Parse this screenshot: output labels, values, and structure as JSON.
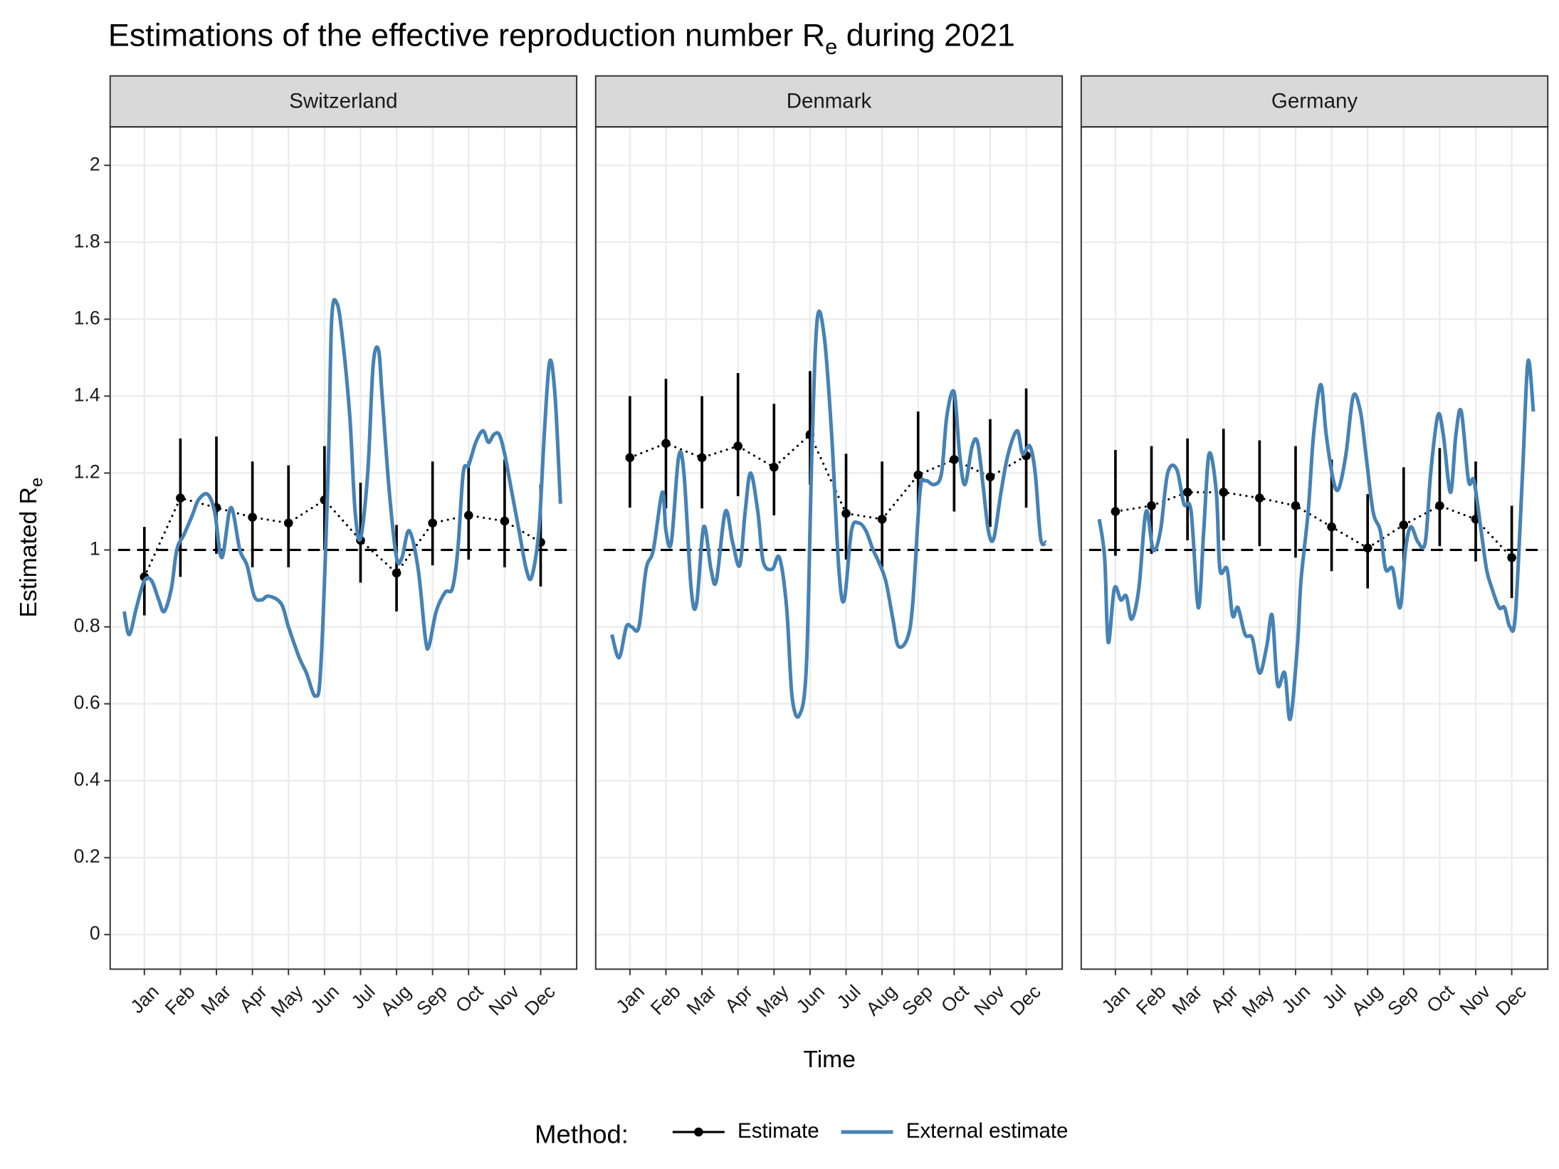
{
  "title_parts": [
    "Estimations of the effective reproduction number R",
    "e",
    " during 2021"
  ],
  "x_label": "Time",
  "y_label_parts": [
    "Estimated R",
    "e"
  ],
  "legend_title": "Method:",
  "chart_data": [
    {
      "type": "line",
      "title": "Switzerland",
      "xlim": [
        0.05,
        13
      ],
      "ylim": [
        -0.09,
        2.1
      ],
      "xticks": [
        {
          "value": 1,
          "label": "Jan"
        },
        {
          "value": 2,
          "label": "Feb"
        },
        {
          "value": 3,
          "label": "Mar"
        },
        {
          "value": 4,
          "label": "Apr"
        },
        {
          "value": 5,
          "label": "May"
        },
        {
          "value": 6,
          "label": "Jun"
        },
        {
          "value": 7,
          "label": "Jul"
        },
        {
          "value": 8,
          "label": "Aug"
        },
        {
          "value": 9,
          "label": "Sep"
        },
        {
          "value": 10,
          "label": "Oct"
        },
        {
          "value": 11,
          "label": "Nov"
        },
        {
          "value": 12,
          "label": "Dec"
        }
      ],
      "yticks": [
        0,
        0.2,
        0.4,
        0.6,
        0.8,
        1,
        1.2,
        1.4,
        1.6,
        1.8,
        2
      ],
      "hline": 1,
      "grid": true,
      "series": [
        {
          "name": "Estimate",
          "color": "#000000",
          "values": [
            0.93,
            1.135,
            1.11,
            1.085,
            1.07,
            1.13,
            1.025,
            0.94,
            1.07,
            1.09,
            1.075,
            1.02
          ],
          "lower": [
            0.83,
            0.93,
            0.99,
            0.955,
            0.955,
            1.0,
            0.915,
            0.84,
            0.96,
            0.975,
            0.955,
            0.905
          ],
          "upper": [
            1.06,
            1.29,
            1.295,
            1.23,
            1.22,
            1.27,
            1.175,
            1.065,
            1.23,
            1.23,
            1.235,
            1.17
          ]
        },
        {
          "name": "External estimate",
          "color": "#4682b4",
          "x": [
            0.44,
            0.58,
            0.78,
            1.0,
            1.2,
            1.4,
            1.55,
            1.75,
            1.9,
            2.1,
            2.33,
            2.5,
            2.75,
            2.95,
            3.15,
            3.4,
            3.65,
            3.85,
            4.05,
            4.25,
            4.45,
            4.8,
            5.0,
            5.3,
            5.5,
            5.75,
            5.9,
            6.1,
            6.2,
            6.35,
            6.5,
            6.7,
            6.85,
            7.0,
            7.2,
            7.35,
            7.5,
            7.6,
            7.8,
            8.0,
            8.15,
            8.35,
            8.6,
            8.8,
            8.9,
            9.1,
            9.35,
            9.55,
            9.7,
            9.85,
            10.0,
            10.2,
            10.4,
            10.55,
            10.7,
            10.85,
            11.0,
            11.2,
            11.4,
            11.6,
            11.75,
            11.95,
            12.1,
            12.25,
            12.4,
            12.55
          ],
          "values": [
            0.84,
            0.78,
            0.85,
            0.92,
            0.92,
            0.87,
            0.84,
            0.9,
            1.0,
            1.04,
            1.09,
            1.13,
            1.145,
            1.1,
            0.98,
            1.11,
            1.0,
            0.96,
            0.88,
            0.87,
            0.88,
            0.86,
            0.8,
            0.72,
            0.68,
            0.62,
            0.7,
            1.2,
            1.6,
            1.64,
            1.55,
            1.35,
            1.1,
            1.03,
            1.2,
            1.48,
            1.52,
            1.4,
            1.15,
            0.98,
            0.98,
            1.05,
            0.95,
            0.77,
            0.75,
            0.84,
            0.89,
            0.9,
            1.0,
            1.2,
            1.22,
            1.28,
            1.31,
            1.28,
            1.3,
            1.3,
            1.25,
            1.15,
            1.05,
            0.95,
            0.93,
            1.05,
            1.3,
            1.49,
            1.4,
            1.12
          ]
        }
      ]
    },
    {
      "type": "line",
      "title": "Denmark",
      "xlim": [
        0.05,
        13
      ],
      "ylim": [
        -0.09,
        2.1
      ],
      "xticks": [
        {
          "value": 1,
          "label": "Jan"
        },
        {
          "value": 2,
          "label": "Feb"
        },
        {
          "value": 3,
          "label": "Mar"
        },
        {
          "value": 4,
          "label": "Apr"
        },
        {
          "value": 5,
          "label": "May"
        },
        {
          "value": 6,
          "label": "Jun"
        },
        {
          "value": 7,
          "label": "Jul"
        },
        {
          "value": 8,
          "label": "Aug"
        },
        {
          "value": 9,
          "label": "Sep"
        },
        {
          "value": 10,
          "label": "Oct"
        },
        {
          "value": 11,
          "label": "Nov"
        },
        {
          "value": 12,
          "label": "Dec"
        }
      ],
      "yticks": [
        0,
        0.2,
        0.4,
        0.6,
        0.8,
        1,
        1.2,
        1.4,
        1.6,
        1.8,
        2
      ],
      "hline": 1,
      "grid": true,
      "series": [
        {
          "color": "#000000",
          "values": [
            1.24,
            1.277,
            1.24,
            1.27,
            1.215,
            1.3,
            1.095,
            1.08,
            1.195,
            1.235,
            1.19,
            1.245
          ],
          "lower": [
            1.11,
            1.108,
            1.108,
            1.14,
            1.09,
            1.17,
            0.975,
            0.955,
            1.065,
            1.1,
            1.06,
            1.11
          ],
          "upper": [
            1.4,
            1.445,
            1.4,
            1.46,
            1.38,
            1.465,
            1.25,
            1.23,
            1.36,
            1.41,
            1.34,
            1.42
          ]
        },
        {
          "color": "#4682b4",
          "x": [
            0.5,
            0.7,
            0.9,
            1.05,
            1.25,
            1.45,
            1.65,
            1.9,
            2.0,
            2.15,
            2.35,
            2.5,
            2.7,
            2.85,
            3.05,
            3.25,
            3.4,
            3.65,
            3.85,
            4.05,
            4.2,
            4.35,
            4.55,
            4.7,
            4.95,
            5.15,
            5.35,
            5.5,
            5.7,
            5.9,
            6.05,
            6.2,
            6.4,
            6.6,
            6.8,
            6.95,
            7.15,
            7.35,
            7.55,
            7.75,
            7.9,
            8.1,
            8.3,
            8.45,
            8.7,
            8.85,
            9.05,
            9.2,
            9.45,
            9.65,
            9.8,
            10.0,
            10.15,
            10.3,
            10.5,
            10.65,
            10.8,
            10.95,
            11.1,
            11.3,
            11.5,
            11.75,
            11.9,
            12.1,
            12.25,
            12.4,
            12.55
          ],
          "values": [
            0.78,
            0.72,
            0.8,
            0.8,
            0.8,
            0.95,
            1.0,
            1.15,
            1.05,
            1.02,
            1.24,
            1.2,
            0.9,
            0.86,
            1.06,
            0.95,
            0.92,
            1.1,
            1.02,
            0.96,
            1.1,
            1.2,
            1.1,
            0.97,
            0.95,
            0.98,
            0.85,
            0.62,
            0.57,
            0.7,
            1.25,
            1.6,
            1.55,
            1.3,
            0.95,
            0.87,
            1.05,
            1.07,
            1.05,
            1.0,
            0.97,
            0.92,
            0.82,
            0.75,
            0.77,
            0.86,
            1.15,
            1.18,
            1.17,
            1.2,
            1.35,
            1.41,
            1.25,
            1.17,
            1.27,
            1.28,
            1.17,
            1.05,
            1.03,
            1.15,
            1.25,
            1.31,
            1.25,
            1.27,
            1.2,
            1.03,
            1.02
          ]
        }
      ]
    },
    {
      "type": "line",
      "title": "Germany",
      "xlim": [
        0.05,
        13
      ],
      "ylim": [
        -0.09,
        2.1
      ],
      "xticks": [
        {
          "value": 1,
          "label": "Jan"
        },
        {
          "value": 2,
          "label": "Feb"
        },
        {
          "value": 3,
          "label": "Mar"
        },
        {
          "value": 4,
          "label": "Apr"
        },
        {
          "value": 5,
          "label": "May"
        },
        {
          "value": 6,
          "label": "Jun"
        },
        {
          "value": 7,
          "label": "Jul"
        },
        {
          "value": 8,
          "label": "Aug"
        },
        {
          "value": 9,
          "label": "Sep"
        },
        {
          "value": 10,
          "label": "Oct"
        },
        {
          "value": 11,
          "label": "Nov"
        },
        {
          "value": 12,
          "label": "Dec"
        }
      ],
      "yticks": [
        0,
        0.2,
        0.4,
        0.6,
        0.8,
        1,
        1.2,
        1.4,
        1.6,
        1.8,
        2
      ],
      "hline": 1,
      "grid": true,
      "series": [
        {
          "color": "#000000",
          "values": [
            1.1,
            1.115,
            1.15,
            1.15,
            1.135,
            1.115,
            1.06,
            1.005,
            1.065,
            1.115,
            1.08,
            0.98
          ],
          "lower": [
            0.985,
            0.99,
            1.025,
            1.025,
            1.01,
            0.98,
            0.945,
            0.9,
            0.955,
            1.01,
            0.97,
            0.875
          ],
          "upper": [
            1.26,
            1.27,
            1.29,
            1.315,
            1.285,
            1.27,
            1.235,
            1.145,
            1.215,
            1.265,
            1.23,
            1.115
          ]
        },
        {
          "color": "#4682b4",
          "x": [
            0.55,
            0.7,
            0.8,
            0.97,
            1.15,
            1.3,
            1.45,
            1.65,
            1.85,
            2.05,
            2.25,
            2.45,
            2.7,
            2.9,
            3.1,
            3.3,
            3.45,
            3.6,
            3.8,
            3.9,
            4.1,
            4.25,
            4.4,
            4.6,
            4.8,
            5.0,
            5.2,
            5.35,
            5.5,
            5.7,
            5.85,
            6.05,
            6.15,
            6.35,
            6.5,
            6.7,
            6.85,
            7.05,
            7.2,
            7.4,
            7.6,
            7.8,
            7.95,
            8.15,
            8.35,
            8.5,
            8.7,
            8.9,
            9.05,
            9.2,
            9.4,
            9.6,
            9.75,
            9.95,
            10.1,
            10.3,
            10.45,
            10.6,
            10.8,
            10.95,
            11.15,
            11.3,
            11.45,
            11.65,
            11.8,
            11.95,
            12.1,
            12.3,
            12.45,
            12.6
          ],
          "values": [
            1.08,
            0.98,
            0.76,
            0.9,
            0.87,
            0.88,
            0.82,
            0.9,
            1.1,
            1.0,
            1.05,
            1.2,
            1.21,
            1.12,
            1.1,
            0.85,
            1.05,
            1.25,
            1.15,
            0.95,
            0.95,
            0.83,
            0.85,
            0.78,
            0.77,
            0.68,
            0.75,
            0.83,
            0.65,
            0.68,
            0.56,
            0.75,
            0.92,
            1.1,
            1.3,
            1.43,
            1.3,
            1.18,
            1.16,
            1.25,
            1.4,
            1.36,
            1.25,
            1.1,
            1.05,
            0.95,
            0.95,
            0.85,
            1.0,
            1.06,
            1.02,
            1.02,
            1.2,
            1.35,
            1.3,
            1.15,
            1.3,
            1.36,
            1.18,
            1.18,
            1.05,
            0.95,
            0.9,
            0.85,
            0.85,
            0.8,
            0.83,
            1.2,
            1.49,
            1.36
          ]
        }
      ]
    }
  ]
}
